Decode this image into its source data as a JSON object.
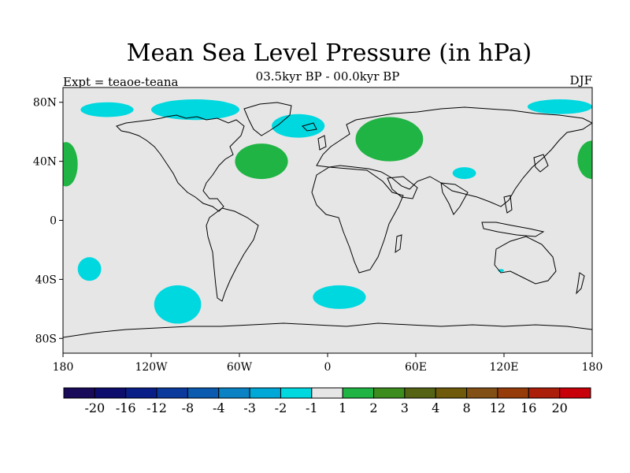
{
  "title": "Mean Sea Level Pressure (in hPa)",
  "subtitle": "03.5kyr BP - 00.0kyr BP",
  "expt_label": "Expt = teaoe-teana",
  "season": "DJF",
  "map": {
    "background": "#e6e6e6",
    "lat_ticks": [
      {
        "value": 80,
        "label": "80N"
      },
      {
        "value": 40,
        "label": "40N"
      },
      {
        "value": 0,
        "label": "0"
      },
      {
        "value": -40,
        "label": "40S"
      },
      {
        "value": -80,
        "label": "80S"
      }
    ],
    "lon_ticks": [
      {
        "value": -180,
        "label": "180"
      },
      {
        "value": -120,
        "label": "120W"
      },
      {
        "value": -60,
        "label": "60W"
      },
      {
        "value": 0,
        "label": "0"
      },
      {
        "value": 60,
        "label": "60E"
      },
      {
        "value": 120,
        "label": "120E"
      },
      {
        "value": 180,
        "label": "180"
      }
    ],
    "anomaly_regions": [
      {
        "category": "-2 to -1",
        "color": "#00d8e0",
        "lon": -150,
        "lat": 75,
        "rx": 18,
        "ry": 5
      },
      {
        "category": "-2 to -1",
        "color": "#00d8e0",
        "lon": -90,
        "lat": 75,
        "rx": 30,
        "ry": 7
      },
      {
        "category": "-2 to -1",
        "color": "#00d8e0",
        "lon": -20,
        "lat": 64,
        "rx": 18,
        "ry": 8
      },
      {
        "category": "-2 to -1",
        "color": "#00d8e0",
        "lon": 158,
        "lat": 77,
        "rx": 22,
        "ry": 5
      },
      {
        "category": "-2 to -1",
        "color": "#00d8e0",
        "lon": 93,
        "lat": 32,
        "rx": 8,
        "ry": 4
      },
      {
        "category": "-2 to -1",
        "color": "#00d8e0",
        "lon": -162,
        "lat": -33,
        "rx": 8,
        "ry": 8
      },
      {
        "category": "-2 to -1",
        "color": "#00d8e0",
        "lon": -102,
        "lat": -57,
        "rx": 16,
        "ry": 13
      },
      {
        "category": "-2 to -1",
        "color": "#00d8e0",
        "lon": 8,
        "lat": -52,
        "rx": 18,
        "ry": 8
      },
      {
        "category": "-2 to -1",
        "color": "#00d8e0",
        "lon": 118,
        "lat": -34,
        "rx": 2,
        "ry": 1
      },
      {
        "category": "1 to 2",
        "color": "#1fb443",
        "lon": -45,
        "lat": 40,
        "rx": 18,
        "ry": 12
      },
      {
        "category": "1 to 2",
        "color": "#1fb443",
        "lon": 42,
        "lat": 55,
        "rx": 23,
        "ry": 15
      },
      {
        "category": "1 to 2",
        "color": "#1fb443",
        "lon": -178,
        "lat": 38,
        "rx": 8,
        "ry": 15
      },
      {
        "category": "1 to 2",
        "color": "#1fb443",
        "lon": 180,
        "lat": 41,
        "rx": 10,
        "ry": 13
      }
    ]
  },
  "colorbar": {
    "colors": [
      "#1a0a5a",
      "#0d0d6e",
      "#0a1e88",
      "#0a3a9c",
      "#0a5ab0",
      "#0a82c4",
      "#00a8d8",
      "#00d8e0",
      "#e6e6e6",
      "#1fb443",
      "#3c8c1e",
      "#556414",
      "#6e5a0a",
      "#825014",
      "#963c0a",
      "#aa1e0a",
      "#c8000a"
    ],
    "labels": [
      "-20",
      "-16",
      "-12",
      "-8",
      "-4",
      "-3",
      "-2",
      "-1",
      "1",
      "2",
      "3",
      "4",
      "8",
      "12",
      "16",
      "20"
    ]
  }
}
